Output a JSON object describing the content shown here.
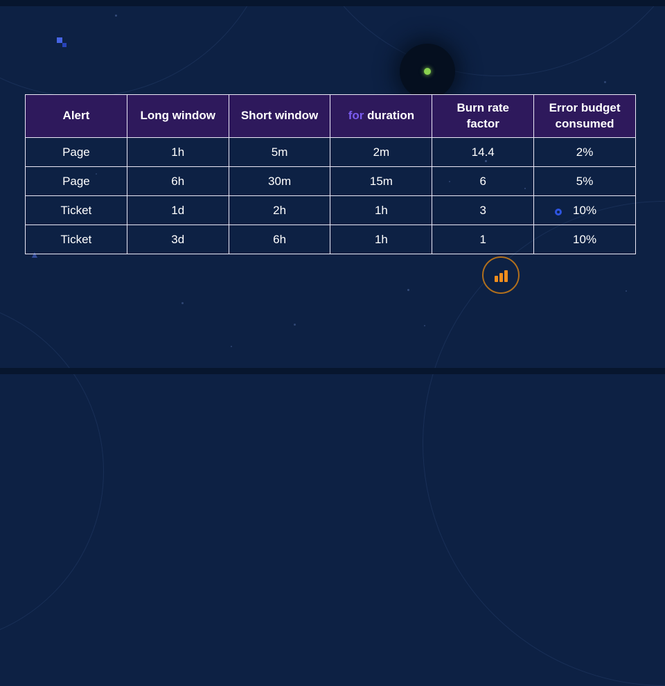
{
  "table": {
    "headers": [
      {
        "text": "Alert"
      },
      {
        "text": "Long window"
      },
      {
        "text": "Short window"
      },
      {
        "keyword": "for",
        "text": "duration"
      },
      {
        "text": "Burn rate factor"
      },
      {
        "text": "Error budget consumed"
      }
    ],
    "rows": [
      [
        "Page",
        "1h",
        "5m",
        "2m",
        "14.4",
        "2%"
      ],
      [
        "Page",
        "6h",
        "30m",
        "15m",
        "6",
        "5%"
      ],
      [
        "Ticket",
        "1d",
        "2h",
        "1h",
        "3",
        "10%"
      ],
      [
        "Ticket",
        "3d",
        "6h",
        "1h",
        "1",
        "10%"
      ]
    ]
  },
  "colors": {
    "background": "#0d2144",
    "strip": "#07162e",
    "header_bg": "#2e195c",
    "table_border": "#ece9f7",
    "text": "#ffffff",
    "keyword": "#7a5cf0",
    "accent_orange": "#ef8d1e",
    "accent_green": "#8ad34f",
    "accent_blue": "#4664e4",
    "ring_blue": "#2e54e0"
  },
  "icons": {
    "triangle": "▲",
    "bar_chart": "bar-chart-icon",
    "planet": "planet-dot"
  }
}
